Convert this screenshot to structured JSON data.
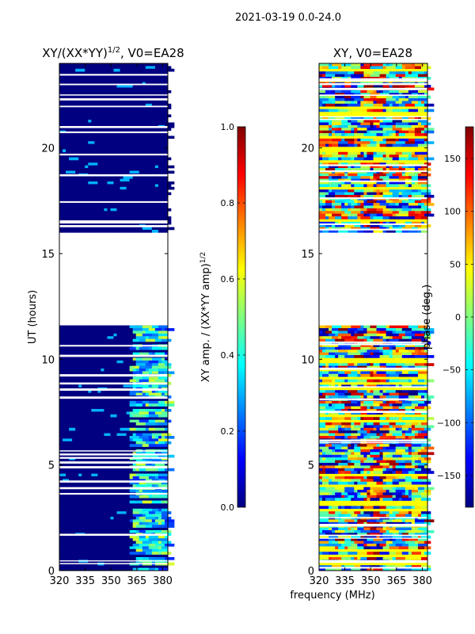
{
  "figure": {
    "suptitle": "2021-03-19 0.0-24.0",
    "xlabel": "frequency (MHz)"
  },
  "chart_data": [
    {
      "type": "heatmap",
      "title_main": "XY/(XX*YY)",
      "title_exp": "1/2",
      "title_rest": ", V0=EA28",
      "ylabel": "UT (hours)",
      "x_range": [
        320,
        383
      ],
      "y_range": [
        0,
        24
      ],
      "x_ticks": [
        "320",
        "335",
        "350",
        "365",
        "380"
      ],
      "y_ticks": [
        "0",
        "5",
        "10",
        "15",
        "20"
      ],
      "gap_hours": [
        11.6,
        16.0
      ],
      "data_ranges_hours": [
        [
          0,
          11.6
        ],
        [
          16.0,
          24.0
        ]
      ],
      "colorbar": {
        "label_main": "XY amp. / (XX*YY amp)",
        "label_exp": "1/2",
        "range": [
          0.0,
          1.0
        ],
        "ticks": [
          "0.0",
          "0.2",
          "0.4",
          "0.6",
          "0.8",
          "1.0"
        ]
      }
    },
    {
      "type": "heatmap",
      "title_main": "XY, V0=EA28",
      "ylabel": "",
      "x_range": [
        320,
        383
      ],
      "y_range": [
        0,
        24
      ],
      "x_ticks": [
        "320",
        "335",
        "350",
        "365",
        "380"
      ],
      "y_ticks": [
        "0",
        "5",
        "10",
        "15",
        "20"
      ],
      "gap_hours": [
        11.6,
        16.0
      ],
      "data_ranges_hours": [
        [
          0,
          11.6
        ],
        [
          16.0,
          24.0
        ]
      ],
      "colorbar": {
        "label_main": "phase (deg.)",
        "range": [
          -180,
          180
        ],
        "ticks": [
          "−150",
          "−100",
          "−50",
          "0",
          "50",
          "100",
          "150"
        ]
      }
    }
  ],
  "colors": {
    "jet": [
      "#000080",
      "#0000ff",
      "#0080ff",
      "#00ffff",
      "#80ff80",
      "#ffff00",
      "#ff8000",
      "#ff0000",
      "#800000"
    ]
  }
}
